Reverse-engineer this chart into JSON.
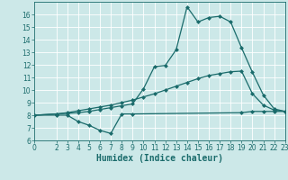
{
  "title": "",
  "xlabel": "Humidex (Indice chaleur)",
  "bg_color": "#cce8e8",
  "grid_color": "#ffffff",
  "line_color": "#1a6b6b",
  "xlim": [
    0,
    23
  ],
  "ylim": [
    6,
    17
  ],
  "xticks": [
    0,
    2,
    3,
    4,
    5,
    6,
    7,
    8,
    9,
    10,
    11,
    12,
    13,
    14,
    15,
    16,
    17,
    18,
    19,
    20,
    21,
    22,
    23
  ],
  "yticks": [
    6,
    7,
    8,
    9,
    10,
    11,
    12,
    13,
    14,
    15,
    16
  ],
  "line1_x": [
    0,
    2,
    3,
    4,
    5,
    6,
    7,
    8,
    9,
    19,
    20,
    21,
    22,
    23
  ],
  "line1_y": [
    8.0,
    8.0,
    8.0,
    7.5,
    7.2,
    6.8,
    6.55,
    8.1,
    8.1,
    8.2,
    8.3,
    8.3,
    8.3,
    8.3
  ],
  "line2_x": [
    0,
    2,
    3,
    4,
    5,
    6,
    7,
    8,
    9,
    10,
    11,
    12,
    13,
    14,
    15,
    16,
    17,
    18,
    19,
    20,
    21,
    22,
    23
  ],
  "line2_y": [
    8.0,
    8.1,
    8.2,
    8.35,
    8.5,
    8.65,
    8.8,
    9.0,
    9.2,
    9.45,
    9.7,
    10.0,
    10.3,
    10.6,
    10.9,
    11.15,
    11.3,
    11.45,
    11.5,
    9.7,
    8.8,
    8.4,
    8.3
  ],
  "line3_x": [
    0,
    2,
    3,
    4,
    5,
    6,
    7,
    8,
    9,
    10,
    11,
    12,
    13,
    14,
    15,
    16,
    17,
    18,
    19,
    20,
    21,
    22,
    23
  ],
  "line3_y": [
    8.0,
    8.1,
    8.15,
    8.2,
    8.3,
    8.45,
    8.6,
    8.75,
    8.9,
    10.1,
    11.85,
    11.95,
    13.2,
    16.6,
    15.4,
    15.75,
    15.85,
    15.4,
    13.35,
    11.4,
    9.6,
    8.5,
    8.3
  ],
  "marker_size": 2.5,
  "line_width": 0.9,
  "xlabel_fontsize": 7,
  "tick_fontsize": 5.5
}
